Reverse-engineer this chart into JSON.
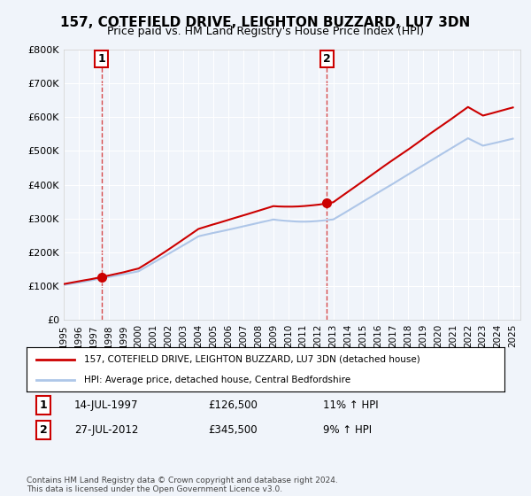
{
  "title": "157, COTEFIELD DRIVE, LEIGHTON BUZZARD, LU7 3DN",
  "subtitle": "Price paid vs. HM Land Registry's House Price Index (HPI)",
  "legend_line1": "157, COTEFIELD DRIVE, LEIGHTON BUZZARD, LU7 3DN (detached house)",
  "legend_line2": "HPI: Average price, detached house, Central Bedfordshire",
  "footnote": "Contains HM Land Registry data © Crown copyright and database right 2024.\nThis data is licensed under the Open Government Licence v3.0.",
  "sale1_date": "14-JUL-1997",
  "sale1_price": "£126,500",
  "sale1_hpi": "11% ↑ HPI",
  "sale1_year": 1997.54,
  "sale1_value": 126500,
  "sale2_date": "27-JUL-2012",
  "sale2_price": "£345,500",
  "sale2_hpi": "9% ↑ HPI",
  "sale2_year": 2012.57,
  "sale2_value": 345500,
  "hpi_color": "#aec6e8",
  "price_color": "#cc0000",
  "dot_color": "#cc0000",
  "dashed_line_color": "#cc0000",
  "background_color": "#f0f4fa",
  "plot_bg_color": "#f0f4fa",
  "grid_color": "#ffffff",
  "ylim": [
    0,
    800000
  ],
  "yticks": [
    0,
    100000,
    200000,
    300000,
    400000,
    500000,
    600000,
    700000,
    800000
  ],
  "xlim_start": 1995.0,
  "xlim_end": 2025.5,
  "xtick_years": [
    1995,
    1996,
    1997,
    1998,
    1999,
    2000,
    2001,
    2002,
    2003,
    2004,
    2005,
    2006,
    2007,
    2008,
    2009,
    2010,
    2011,
    2012,
    2013,
    2014,
    2015,
    2016,
    2017,
    2018,
    2019,
    2020,
    2021,
    2022,
    2023,
    2024,
    2025
  ]
}
